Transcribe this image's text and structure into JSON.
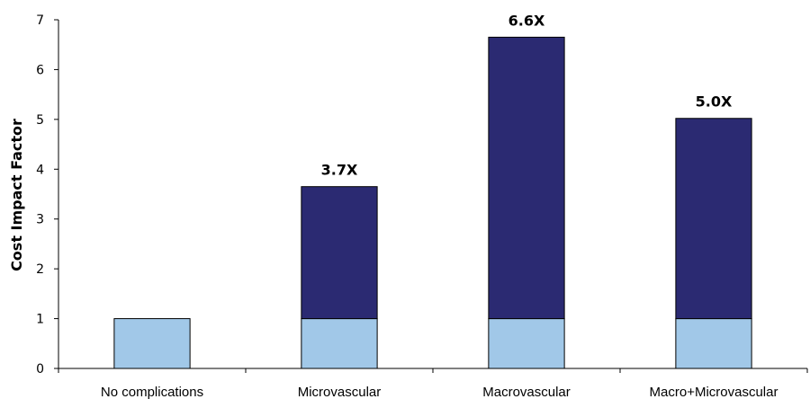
{
  "chart_data": {
    "type": "bar",
    "stacked": true,
    "ylabel": "Cost Impact Factor",
    "xlabel": "",
    "ylim": [
      0,
      7
    ],
    "yticks": [
      0,
      1,
      2,
      3,
      4,
      5,
      6,
      7
    ],
    "categories": [
      "No complications",
      "Microvascular",
      "Macrovascular",
      "Macro+Microvascular"
    ],
    "series": [
      {
        "values": [
          1,
          1,
          1,
          1
        ],
        "color": "#a1c8e8"
      },
      {
        "values": [
          0,
          2.65,
          5.65,
          4.02
        ],
        "color": "#2b2a72"
      }
    ],
    "data_labels": [
      "",
      "3.7X",
      "6.6X",
      "5.0X"
    ],
    "grid": false,
    "legend": "none"
  }
}
